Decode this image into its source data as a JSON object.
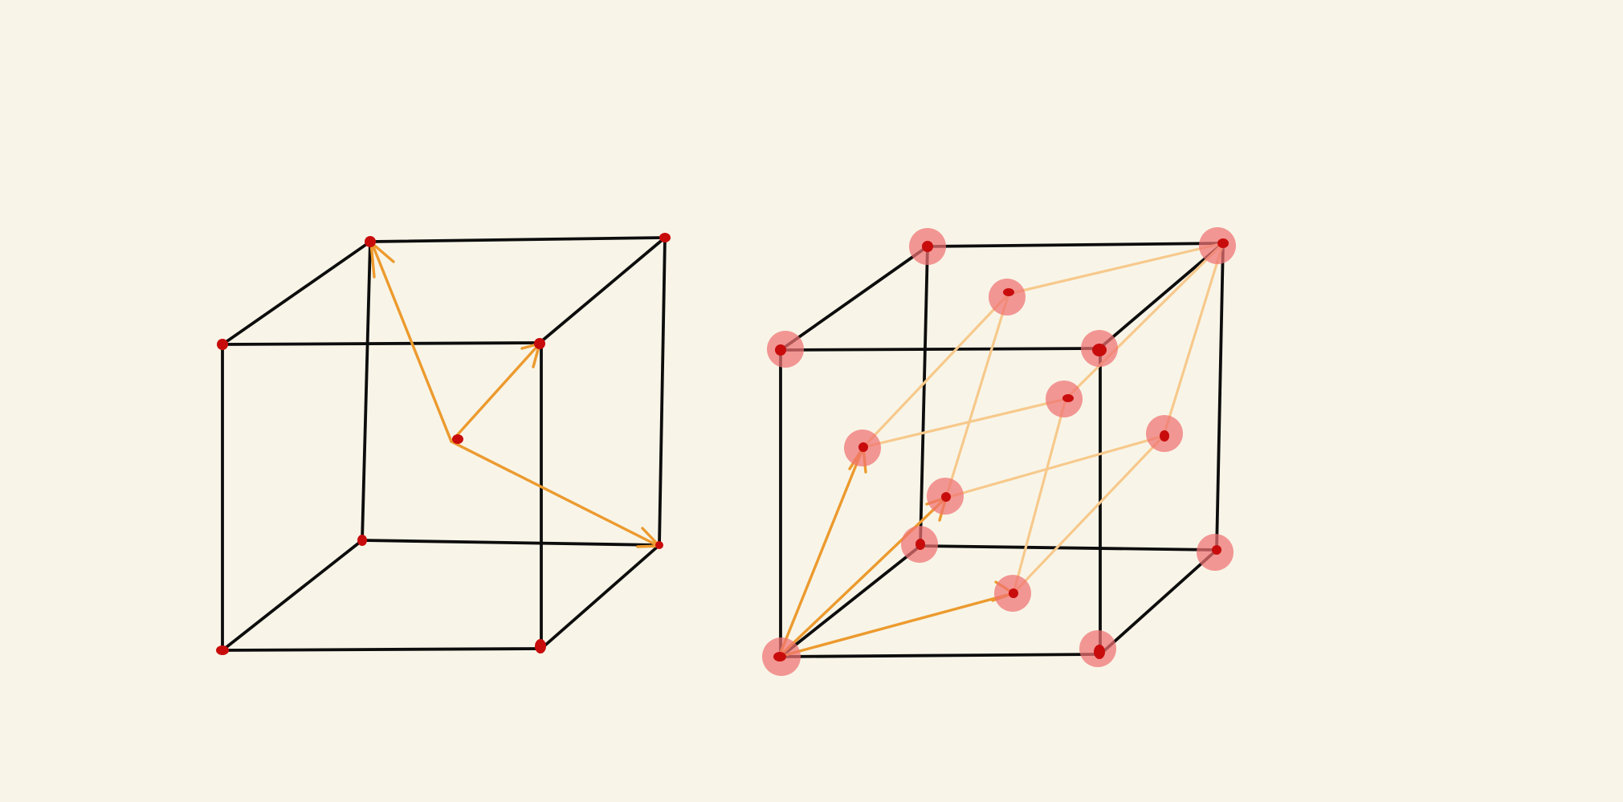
{
  "colors": {
    "background": "#f8f5e8",
    "edge": "#0d0d0d",
    "arrow": "#ec9a2e",
    "guide": "#f7c98c",
    "point": "#c80c0c",
    "halo": "#f07272"
  },
  "diagrams": [
    {
      "name": "body-centered-cube",
      "description_label": "cube-with-center-point-vectors"
    },
    {
      "name": "face-centered-cube",
      "description_label": "cube-with-face-center-points"
    }
  ]
}
